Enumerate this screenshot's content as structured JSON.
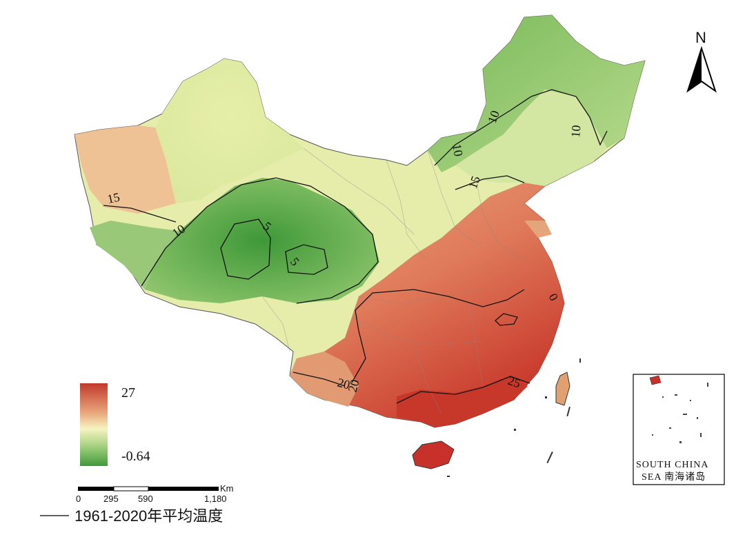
{
  "legend": {
    "max_label": "27",
    "min_label": "-0.64",
    "colors": [
      "#c0392b",
      "#e8a57a",
      "#f7f3c2",
      "#a8d382",
      "#3f9a3a"
    ]
  },
  "contour_labels": [
    "15",
    "10",
    "5",
    "5",
    "10",
    "10",
    "10",
    "15",
    "20",
    "20",
    "25",
    "0"
  ],
  "north_arrow": {
    "label": "N"
  },
  "scale_bar": {
    "unit": "Km",
    "ticks": [
      "0",
      "295",
      "590",
      "1,180"
    ]
  },
  "inset": {
    "line1": "SOUTH CHINA",
    "line2": "SEA 南海诸岛"
  },
  "caption": {
    "text": "1961-2020年平均温度"
  }
}
